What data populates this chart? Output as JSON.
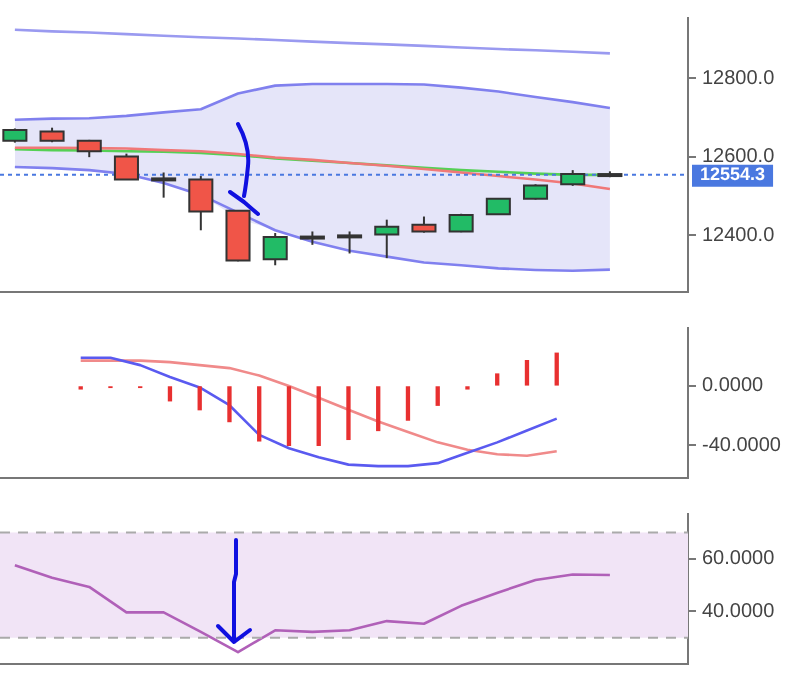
{
  "chart_data": [
    {
      "type": "candlestick",
      "categories": [
        null,
        null,
        null,
        null,
        null,
        null,
        null,
        null,
        null,
        null,
        null,
        null,
        null,
        null,
        null,
        null,
        null
      ],
      "ohlc": [
        [
          12641,
          12672,
          12636,
          12668
        ],
        [
          12664,
          12674,
          12637,
          12641
        ],
        [
          12641,
          12643,
          12599,
          12614
        ],
        [
          12601,
          12608,
          12541,
          12542
        ],
        [
          12545,
          12560,
          12496,
          12543
        ],
        [
          12542,
          12551,
          12413,
          12461
        ],
        [
          12463,
          12464,
          12334,
          12336
        ],
        [
          12339,
          12406,
          12324,
          12396
        ],
        [
          12396,
          12410,
          12376,
          12397
        ],
        [
          12399,
          12410,
          12354,
          12400
        ],
        [
          12402,
          12440,
          12342,
          12422
        ],
        [
          12427,
          12448,
          12407,
          12410
        ],
        [
          12410,
          12455,
          12408,
          12452
        ],
        [
          12454,
          12495,
          12452,
          12493
        ],
        [
          12493,
          12530,
          12491,
          12527
        ],
        [
          12530,
          12566,
          12526,
          12556
        ],
        [
          12553,
          12563,
          12548,
          12556
        ]
      ],
      "colors": [
        "#22bb66",
        "#f05548",
        "#f05548",
        "#f05548",
        "#f05548",
        "#f05548",
        "#f05548",
        "#22bb66",
        "#22bb66",
        "#22bb66",
        "#22bb66",
        "#f05548",
        "#22bb66",
        "#22bb66",
        "#22bb66",
        "#22bb66",
        "#22bb66"
      ],
      "series": [
        {
          "type": "line",
          "color": "#f07878",
          "values": [
            12623,
            12623,
            12622,
            12621,
            12617,
            12614,
            12607,
            12598,
            12592,
            12584,
            12577,
            12569,
            12560,
            12551,
            12542,
            12532,
            12518
          ],
          "lower": [
            12574,
            12571,
            12566,
            12556,
            12533,
            12503,
            12443,
            12413,
            12384,
            12361,
            12346,
            12331,
            12324,
            12316,
            12312,
            12310,
            12313
          ],
          "upper": [
            12694,
            12697,
            12698,
            12704,
            12713,
            12721,
            12761,
            12781,
            12785,
            12785,
            12785,
            12784,
            12776,
            12766,
            12752,
            12739,
            12724
          ]
        },
        {
          "type": "line",
          "color": "#55d055",
          "values": [
            12619,
            12617,
            12616,
            12614,
            12613,
            12610,
            12604,
            12596,
            12590,
            12584,
            12578,
            12572,
            12566,
            12562,
            12557,
            12554,
            12554
          ]
        },
        {
          "type": "line",
          "color": "#8080ee",
          "values": [
            12694,
            12697,
            12698,
            12704,
            12713,
            12721,
            12761,
            12781,
            12785,
            12785,
            12785,
            12784,
            12776,
            12766,
            12752,
            12739,
            12724
          ]
        },
        {
          "type": "line",
          "color": "#8080ef",
          "values": [
            12574,
            12571,
            12566,
            12556,
            12533,
            12503,
            null,
            12413,
            12384,
            12361,
            12346,
            12331,
            12324,
            12316,
            12312,
            12310,
            12313
          ]
        },
        {
          "type": "line",
          "color": "#9a9af0",
          "values": [
            12923,
            12919,
            12916,
            12912,
            12908,
            12904,
            12901,
            12897,
            12893,
            12889,
            12886,
            12882,
            12878,
            12874,
            12871,
            12867,
            12863
          ]
        }
      ],
      "ref_lines": [
        {
          "axis": "y",
          "value": 12554.3,
          "label": "12554.3",
          "color": "#4a78e0",
          "line_style": "dotted"
        }
      ],
      "ylim": [
        12256,
        12953
      ],
      "yticks": [
        {
          "value": 12400,
          "label": "12400.0"
        },
        {
          "value": 12600,
          "label": "12600.0"
        },
        {
          "value": 12800,
          "label": "12800.0"
        }
      ],
      "tick_labels": "y",
      "marker": "none"
    },
    {
      "type": "bar",
      "categories": [
        null,
        null,
        null,
        null,
        null,
        null,
        null,
        null,
        null,
        null,
        null,
        null,
        null,
        null,
        null,
        null,
        null
      ],
      "series": [
        {
          "type": "bar",
          "color": "#e83030",
          "values": [
            -2,
            -1,
            -1,
            -10,
            -16,
            -24,
            -37,
            -40,
            -40,
            -36,
            -30,
            -23,
            -13,
            -2,
            8,
            17,
            22
          ]
        },
        {
          "type": "line",
          "color": "#5a5af0",
          "values": [
            19,
            19,
            14,
            6,
            -1,
            -13,
            -33,
            -42,
            -48,
            -53,
            -54,
            -54,
            -52,
            -45,
            -38,
            -30,
            -22
          ]
        },
        {
          "type": "line",
          "color": "#f08a8a",
          "values": [
            17,
            17,
            17,
            16,
            14,
            12,
            7,
            0,
            -8,
            -16,
            -24,
            -31,
            -38,
            -43,
            -46,
            -47,
            -44
          ]
        }
      ],
      "ylim": [
        -62,
        39
      ],
      "yticks": [
        {
          "value": -40,
          "label": "-40.0000"
        },
        {
          "value": 0,
          "label": "0.0000"
        }
      ],
      "tick_labels": "y",
      "marker": "none"
    },
    {
      "type": "line",
      "categories": [
        null,
        null,
        null,
        null,
        null,
        null,
        null,
        null,
        null,
        null,
        null,
        null,
        null,
        null,
        null,
        null,
        null
      ],
      "series": [
        {
          "color": "#b060b8",
          "values": [
            57.5,
            52.8,
            49.3,
            39.6,
            39.6,
            32.2,
            24.5,
            32.8,
            32.2,
            32.8,
            36.3,
            35.3,
            42.1,
            47.2,
            51.9,
            54,
            53.8
          ]
        }
      ],
      "bands": [
        {
          "axis": "y",
          "from": 30,
          "to": 70,
          "color": "#f1e4f6"
        }
      ],
      "ref_lines": [
        {
          "axis": "y",
          "value": 30,
          "color": "#aaaaaa",
          "line_style": "dashed"
        },
        {
          "axis": "y",
          "value": 70,
          "color": "#aaaaaa",
          "line_style": "dashed"
        }
      ],
      "ylim": [
        20,
        77
      ],
      "yticks": [
        {
          "value": 40,
          "label": "40.0000"
        },
        {
          "value": 60,
          "label": "60.0000"
        }
      ],
      "tick_labels": "y",
      "marker": "none"
    }
  ]
}
